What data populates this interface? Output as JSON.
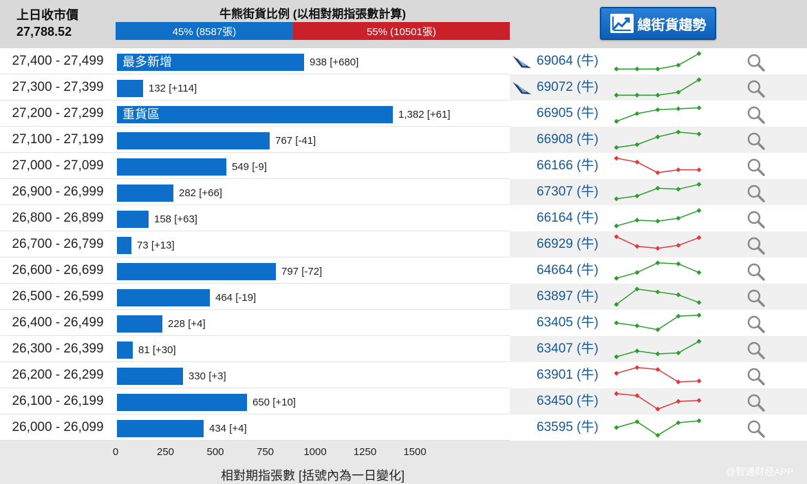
{
  "header": {
    "prev_close_label": "上日收市價",
    "prev_close_value": "27,788.52",
    "ratio_title": "牛熊街貨比例 (以相對期指張數計算)",
    "bull_label": "45% (8587張)",
    "bull_fraction": 0.45,
    "bear_label": "55% (10501張)",
    "trend_button_label": "總街貨趨勢",
    "bull_color": "#1070c8",
    "bear_color": "#c9202a"
  },
  "rows": [
    {
      "range": "27,400 - 27,499",
      "value": 938,
      "label": "938 [+680]",
      "tag": "最多新增",
      "code": "69064 (牛)",
      "hot": true,
      "trend": [
        0.9,
        0.9,
        0.9,
        0.7,
        0.1
      ],
      "trend_color": "#2ca02c"
    },
    {
      "range": "27,300 - 27,399",
      "value": 132,
      "label": "132 [+114]",
      "tag": "",
      "code": "69072 (牛)",
      "hot": true,
      "trend": [
        0.9,
        0.9,
        0.9,
        0.75,
        0.1
      ],
      "trend_color": "#2ca02c"
    },
    {
      "range": "27,200 - 27,299",
      "value": 1382,
      "label": "1,382 [+61]",
      "tag": "重貨區",
      "code": "66905 (牛)",
      "hot": false,
      "trend": [
        0.9,
        0.5,
        0.3,
        0.25,
        0.2
      ],
      "trend_color": "#2ca02c"
    },
    {
      "range": "27,100 - 27,199",
      "value": 767,
      "label": "767 [-41]",
      "tag": "",
      "code": "66908 (牛)",
      "hot": false,
      "trend": [
        0.9,
        0.75,
        0.35,
        0.1,
        0.2
      ],
      "trend_color": "#2ca02c"
    },
    {
      "range": "27,000 - 27,099",
      "value": 549,
      "label": "549 [-9]",
      "tag": "",
      "code": "66166 (牛)",
      "hot": false,
      "trend": [
        0.1,
        0.3,
        0.85,
        0.7,
        0.7
      ],
      "trend_color": "#e0393e"
    },
    {
      "range": "26,900 - 26,999",
      "value": 282,
      "label": "282 [+66]",
      "tag": "",
      "code": "67307 (牛)",
      "hot": false,
      "trend": [
        0.85,
        0.7,
        0.3,
        0.35,
        0.1
      ],
      "trend_color": "#2ca02c"
    },
    {
      "range": "26,800 - 26,899",
      "value": 158,
      "label": "158 [+63]",
      "tag": "",
      "code": "66164 (牛)",
      "hot": false,
      "trend": [
        0.9,
        0.6,
        0.65,
        0.5,
        0.1
      ],
      "trend_color": "#2ca02c"
    },
    {
      "range": "26,700 - 26,799",
      "value": 73,
      "label": "73 [+13]",
      "tag": "",
      "code": "66929 (牛)",
      "hot": false,
      "trend": [
        0.1,
        0.6,
        0.7,
        0.55,
        0.15
      ],
      "trend_color": "#e0393e"
    },
    {
      "range": "26,600 - 26,699",
      "value": 797,
      "label": "797 [-72]",
      "tag": "",
      "code": "64664 (牛)",
      "hot": false,
      "trend": [
        0.9,
        0.6,
        0.1,
        0.15,
        0.6
      ],
      "trend_color": "#2ca02c"
    },
    {
      "range": "26,500 - 26,599",
      "value": 464,
      "label": "464 [-19]",
      "tag": "",
      "code": "63897 (牛)",
      "hot": false,
      "trend": [
        0.9,
        0.1,
        0.25,
        0.4,
        0.8
      ],
      "trend_color": "#2ca02c"
    },
    {
      "range": "26,400 - 26,499",
      "value": 228,
      "label": "228 [+4]",
      "tag": "",
      "code": "63405 (牛)",
      "hot": false,
      "trend": [
        0.5,
        0.65,
        0.85,
        0.15,
        0.1
      ],
      "trend_color": "#2ca02c"
    },
    {
      "range": "26,300 - 26,399",
      "value": 81,
      "label": "81 [+30]",
      "tag": "",
      "code": "63407 (牛)",
      "hot": false,
      "trend": [
        0.9,
        0.6,
        0.75,
        0.7,
        0.1
      ],
      "trend_color": "#2ca02c"
    },
    {
      "range": "26,200 - 26,299",
      "value": 330,
      "label": "330 [+3]",
      "tag": "",
      "code": "63901 (牛)",
      "hot": false,
      "trend": [
        0.4,
        0.1,
        0.2,
        0.85,
        0.8
      ],
      "trend_color": "#e0393e"
    },
    {
      "range": "26,100 - 26,199",
      "value": 650,
      "label": "650 [+10]",
      "tag": "",
      "code": "63450 (牛)",
      "hot": false,
      "trend": [
        0.1,
        0.2,
        0.9,
        0.5,
        0.45
      ],
      "trend_color": "#e0393e"
    },
    {
      "range": "26,000 - 26,099",
      "value": 434,
      "label": "434 [+4]",
      "tag": "",
      "code": "63595 (牛)",
      "hot": false,
      "trend": [
        0.5,
        0.2,
        0.9,
        0.25,
        0.15
      ],
      "trend_color": "#2ca02c"
    }
  ],
  "chart_data": {
    "type": "bar",
    "orientation": "horizontal",
    "categories": [
      "27,400 - 27,499",
      "27,300 - 27,399",
      "27,200 - 27,299",
      "27,100 - 27,199",
      "27,000 - 27,099",
      "26,900 - 26,999",
      "26,800 - 26,899",
      "26,700 - 26,799",
      "26,600 - 26,699",
      "26,500 - 26,599",
      "26,400 - 26,499",
      "26,300 - 26,399",
      "26,200 - 26,299",
      "26,100 - 26,199",
      "26,000 - 26,099"
    ],
    "values": [
      938,
      132,
      1382,
      767,
      549,
      282,
      158,
      73,
      797,
      464,
      228,
      81,
      330,
      650,
      434
    ],
    "changes": [
      680,
      114,
      61,
      -41,
      -9,
      66,
      63,
      13,
      -72,
      -19,
      4,
      30,
      3,
      10,
      4
    ],
    "xlabel": "相對期指張數 [括號內為一日變化]",
    "xlim": [
      0,
      1500
    ],
    "xticks": [
      "0",
      "250",
      "500",
      "750",
      "1000",
      "1250",
      "1500"
    ]
  },
  "axis": {
    "title": "相對期指張數 [括號內為一日變化]",
    "ticks": [
      0,
      250,
      500,
      750,
      1000,
      1250,
      1500
    ]
  },
  "watermark": "@智通财经APP"
}
